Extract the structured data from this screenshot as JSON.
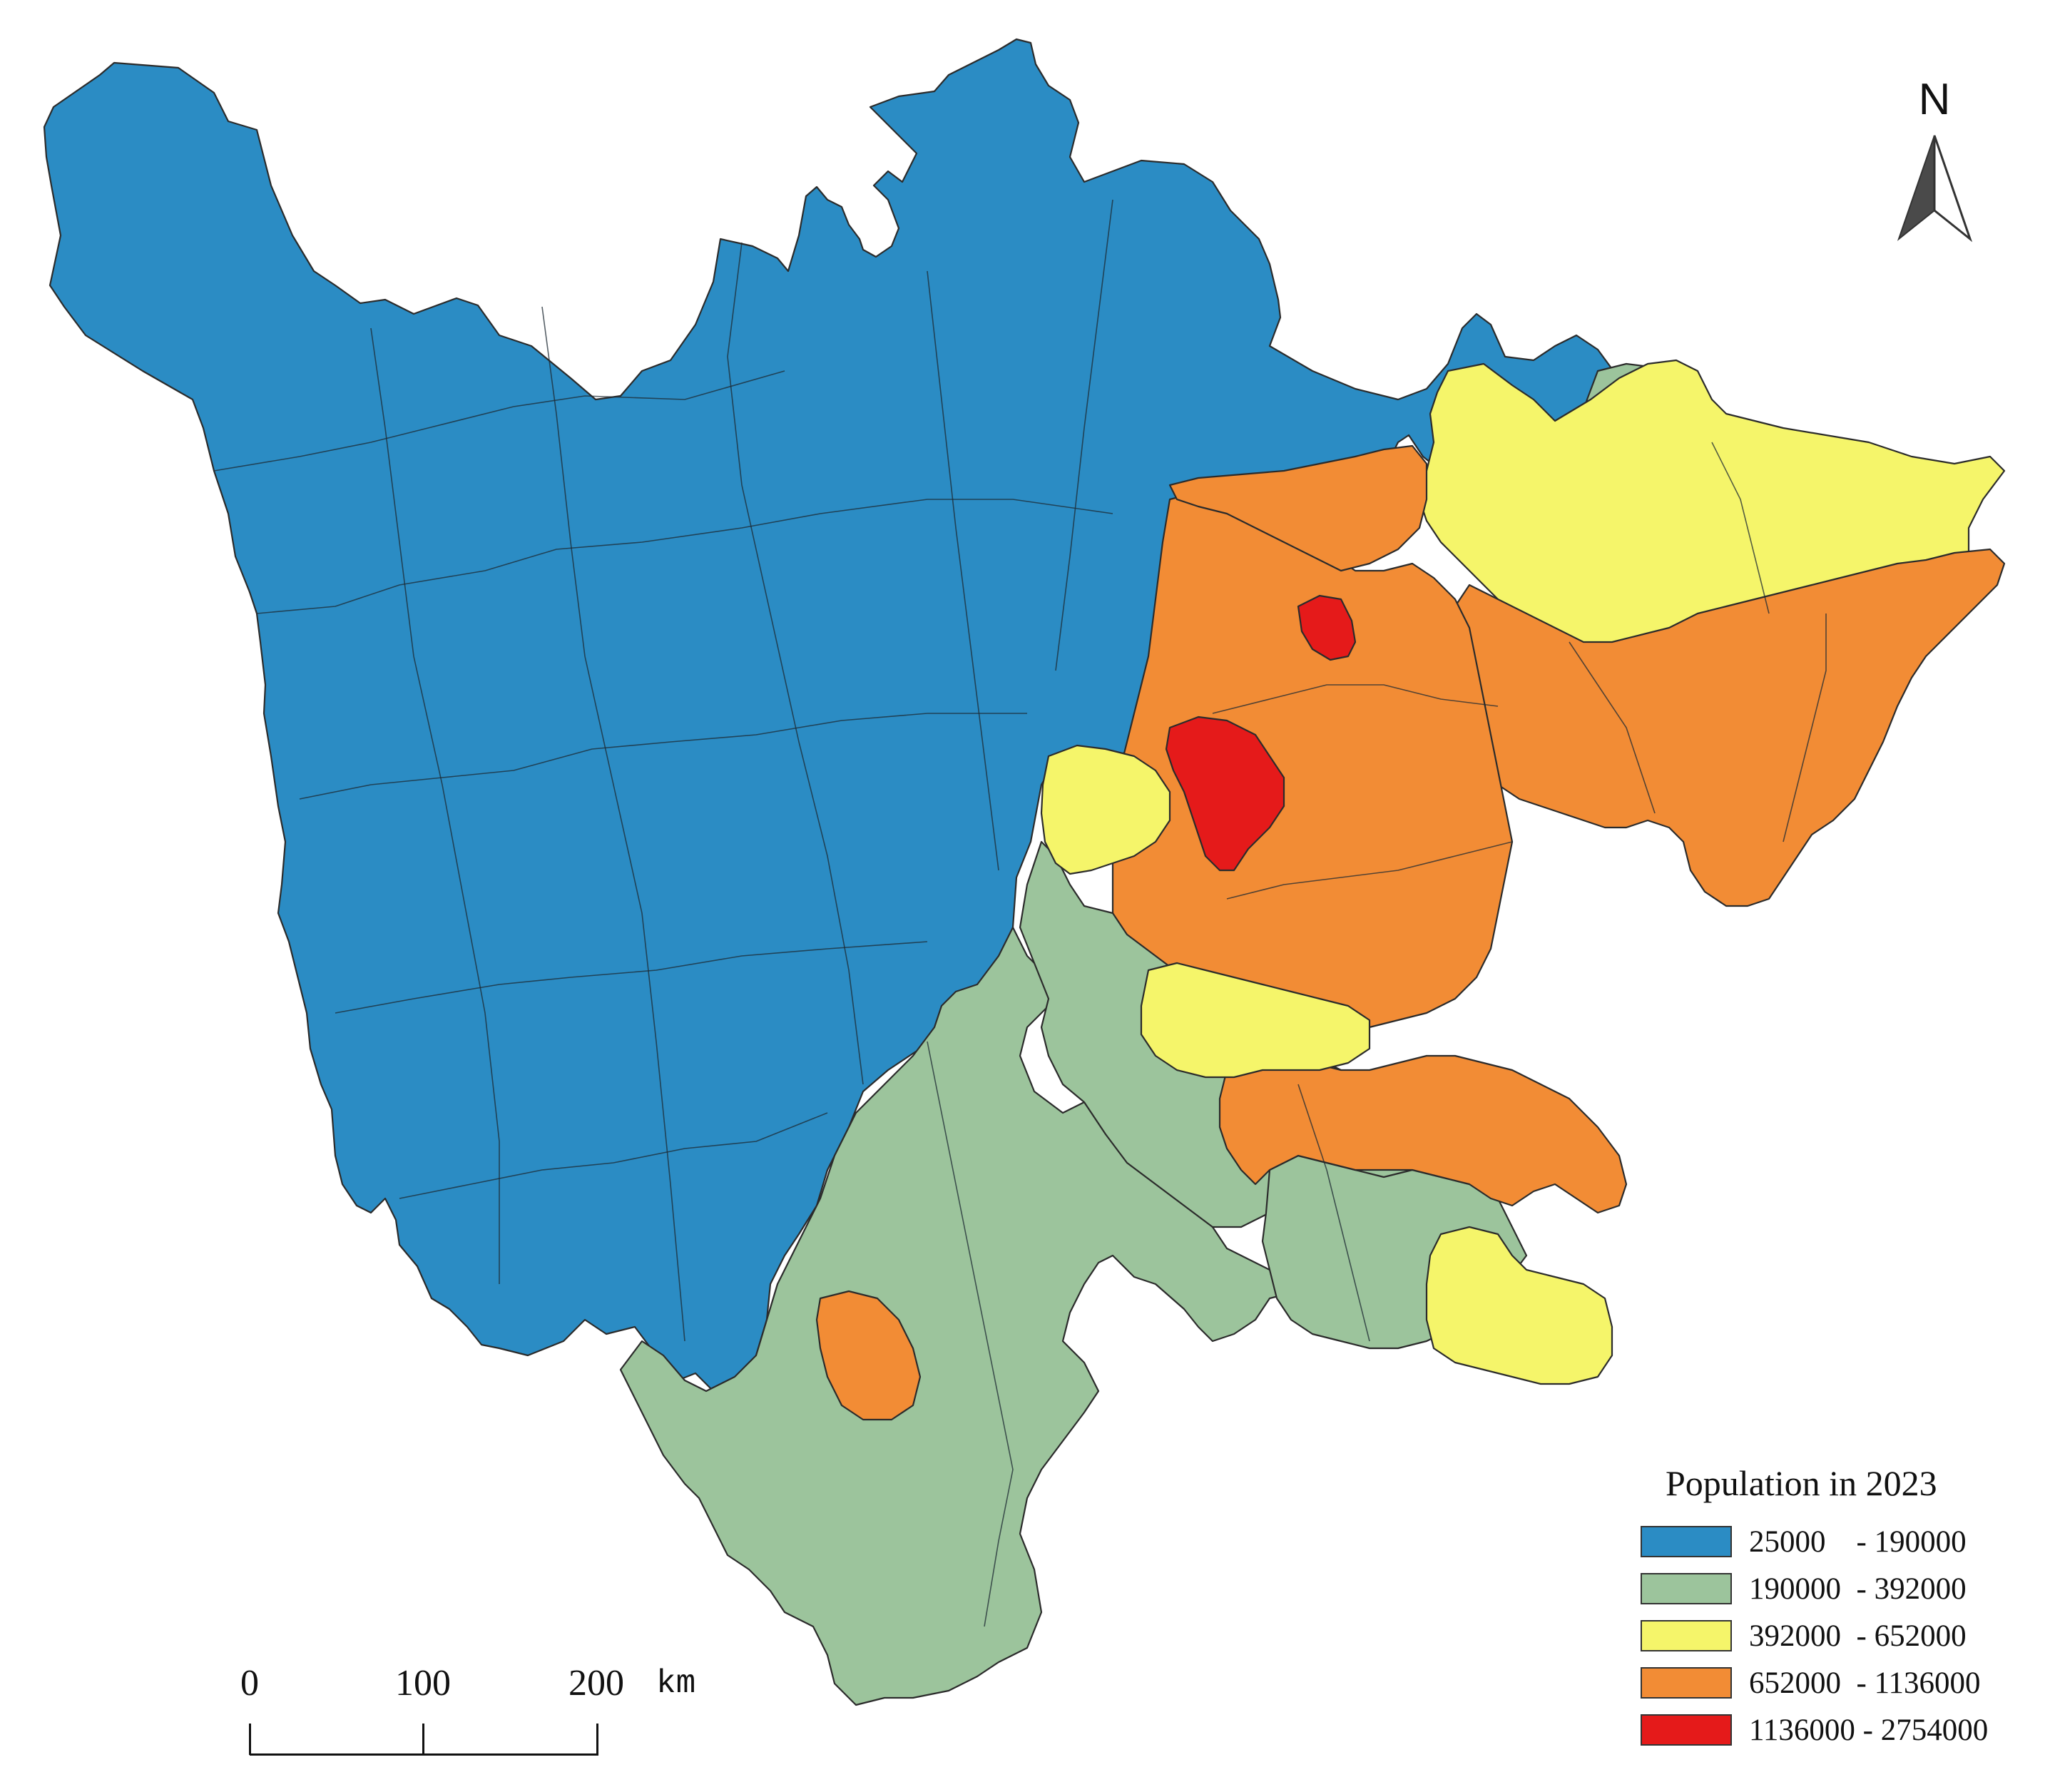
{
  "map": {
    "legend": {
      "title": "Population in 2023",
      "classes": [
        {
          "label": "25000    - 190000",
          "color": "#2b8cc4",
          "min": 25000,
          "max": 190000
        },
        {
          "label": "190000  - 392000",
          "color": "#9cc49c",
          "min": 190000,
          "max": 392000
        },
        {
          "label": "392000  - 652000",
          "color": "#f5f56a",
          "min": 392000,
          "max": 652000
        },
        {
          "label": "652000  - 1136000",
          "color": "#f28c35",
          "min": 652000,
          "max": 1136000
        },
        {
          "label": "1136000 - 2754000",
          "color": "#e51a1a",
          "min": 1136000,
          "max": 2754000
        }
      ]
    },
    "north_arrow": {
      "letter": "N"
    },
    "scale_bar": {
      "ticks": [
        "0",
        "100",
        "200"
      ],
      "unit": "km"
    }
  }
}
